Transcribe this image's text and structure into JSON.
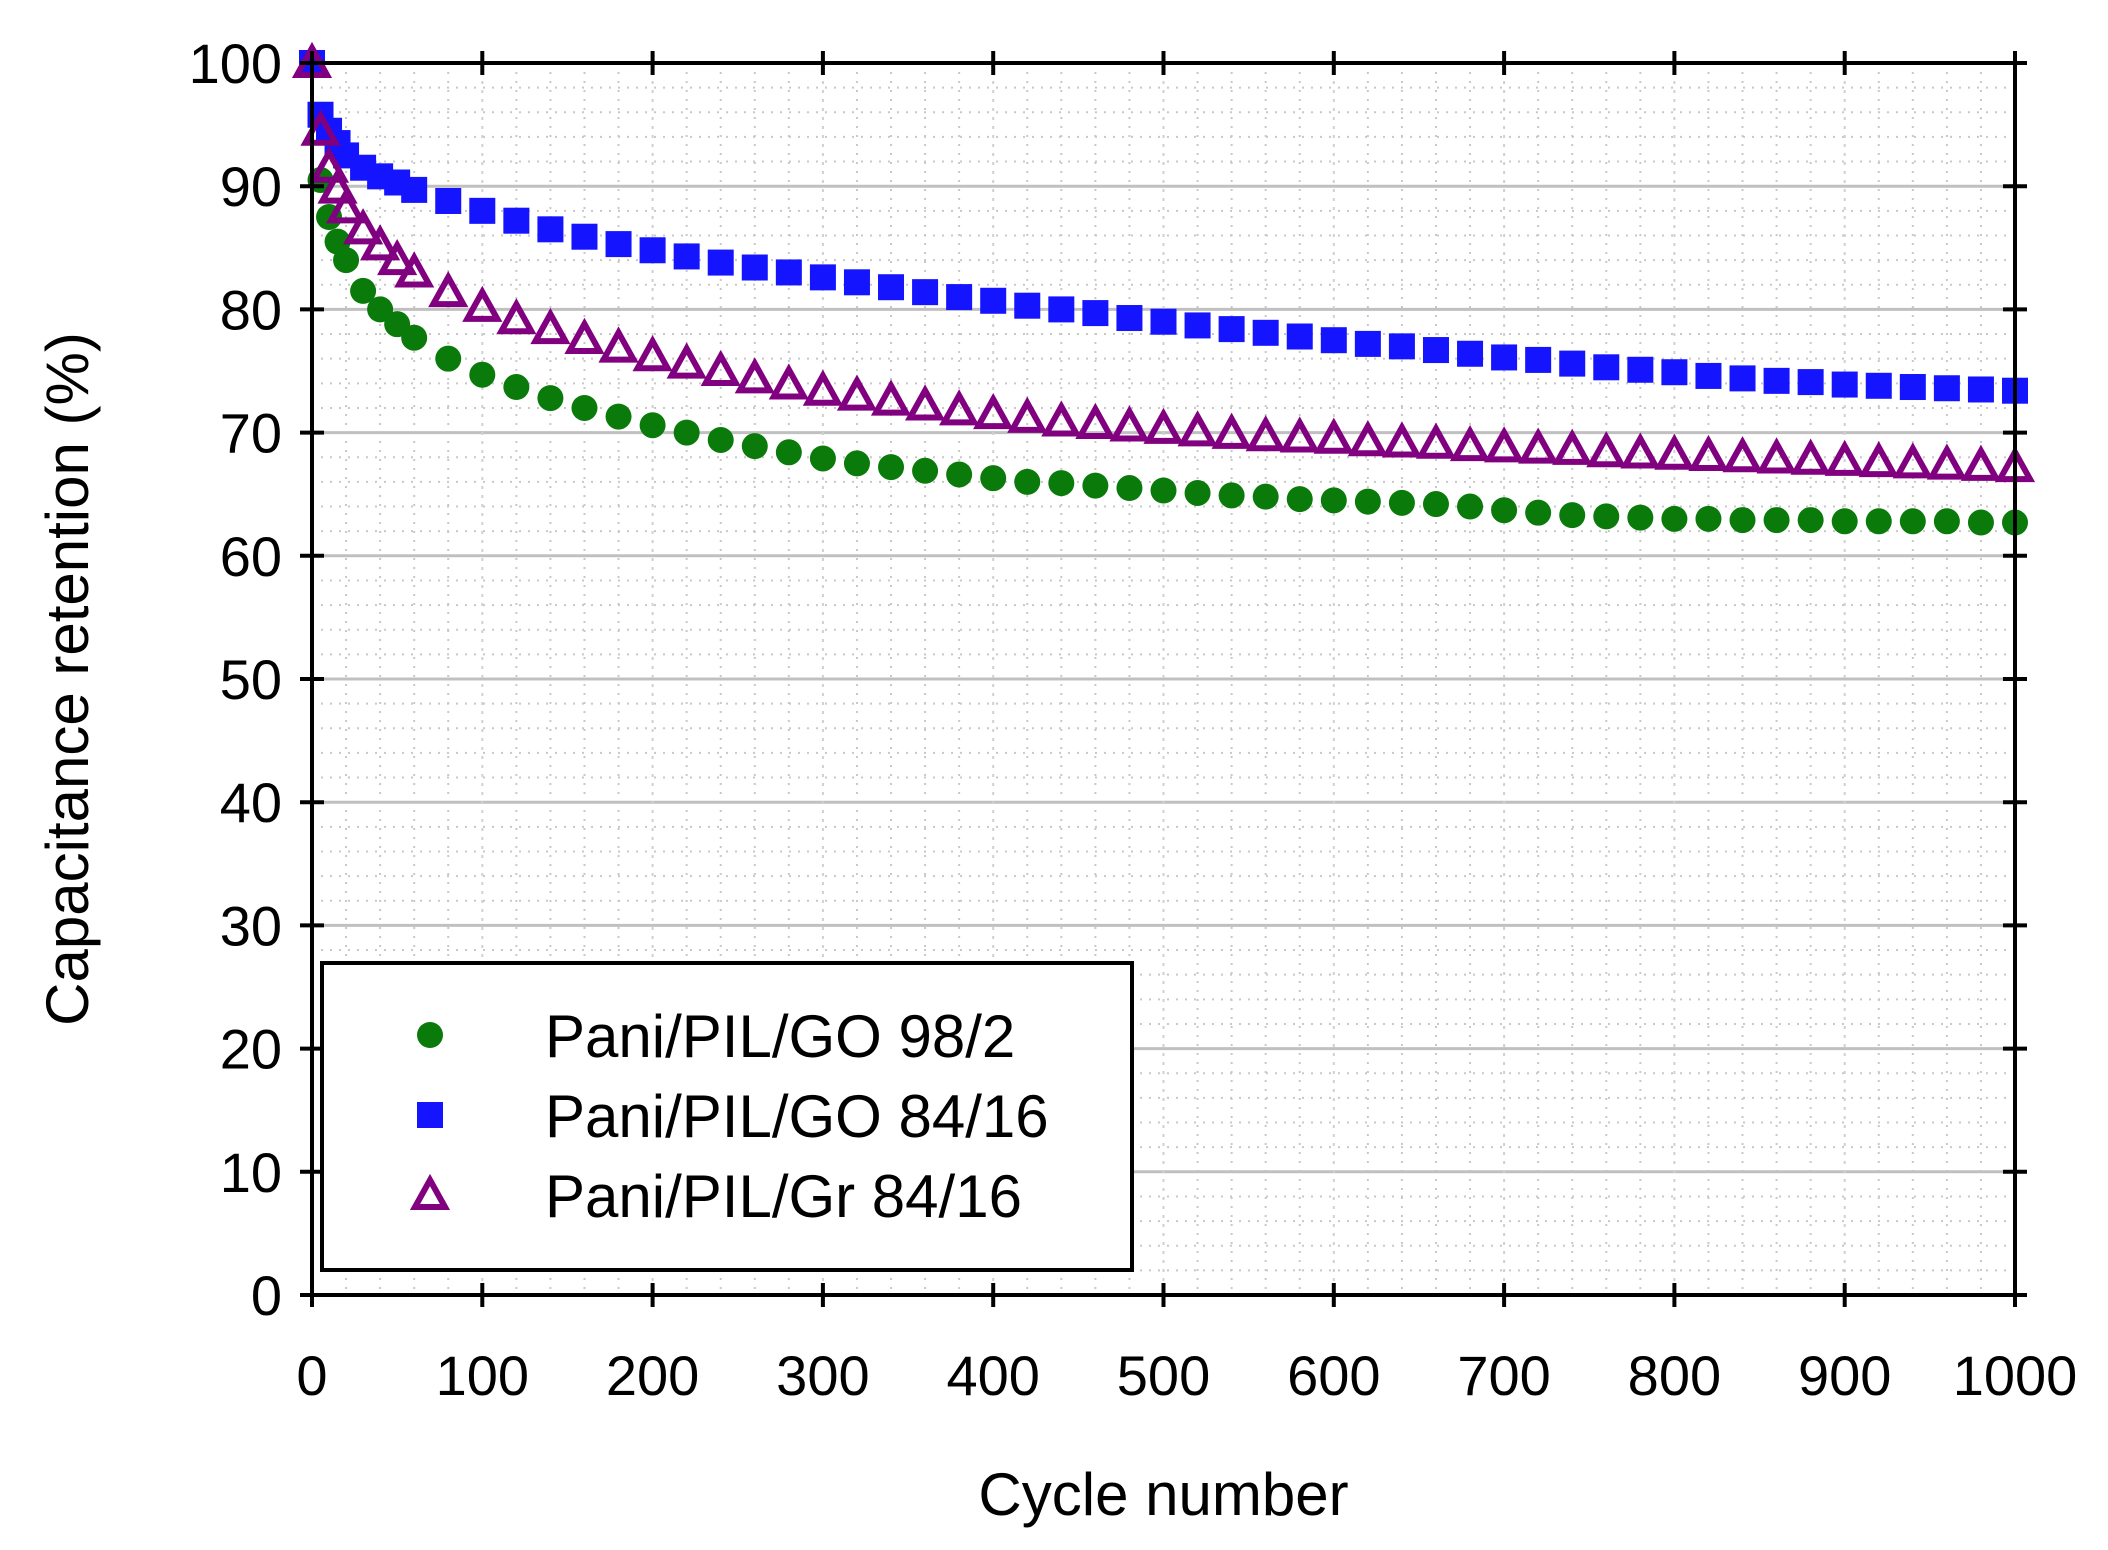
{
  "chart_data": {
    "type": "scatter",
    "title": "",
    "xlabel": "Cycle number",
    "ylabel": "Capacitance retention (%)",
    "xlim": [
      0,
      1000
    ],
    "ylim": [
      0,
      100
    ],
    "xticks": [
      0,
      100,
      200,
      300,
      400,
      500,
      600,
      700,
      800,
      900,
      1000
    ],
    "yticks": [
      0,
      10,
      20,
      30,
      40,
      50,
      60,
      70,
      80,
      90,
      100
    ],
    "xtick_labels": [
      "0",
      "100",
      "200",
      "300",
      "400",
      "500",
      "600",
      "700",
      "800",
      "900",
      "1000"
    ],
    "ytick_labels": [
      "0",
      "10",
      "20",
      "30",
      "40",
      "50",
      "60",
      "70",
      "80",
      "90",
      "100"
    ],
    "grid": true,
    "legend_position": "bottom-left",
    "series": [
      {
        "name": "Pani/PIL/GO 98/2",
        "marker": "circle",
        "color": "#0a7a0a",
        "x": [
          0,
          5,
          10,
          15,
          20,
          30,
          40,
          50,
          60,
          80,
          100,
          120,
          140,
          160,
          180,
          200,
          220,
          240,
          260,
          280,
          300,
          320,
          340,
          360,
          380,
          400,
          420,
          440,
          460,
          480,
          500,
          520,
          540,
          560,
          580,
          600,
          620,
          640,
          660,
          680,
          700,
          720,
          740,
          760,
          780,
          800,
          820,
          840,
          860,
          880,
          900,
          920,
          940,
          960,
          980,
          1000
        ],
        "y": [
          100,
          90.5,
          87.5,
          85.5,
          84.0,
          81.5,
          80.0,
          78.8,
          77.7,
          76.0,
          74.7,
          73.7,
          72.8,
          72.0,
          71.3,
          70.6,
          70.0,
          69.4,
          68.9,
          68.4,
          67.9,
          67.5,
          67.2,
          66.9,
          66.6,
          66.3,
          66.0,
          65.9,
          65.7,
          65.5,
          65.3,
          65.1,
          64.9,
          64.8,
          64.6,
          64.5,
          64.4,
          64.3,
          64.2,
          64.0,
          63.7,
          63.5,
          63.3,
          63.2,
          63.1,
          63.0,
          63.0,
          62.9,
          62.9,
          62.9,
          62.8,
          62.8,
          62.8,
          62.8,
          62.7,
          62.7
        ]
      },
      {
        "name": "Pani/PIL/GO 84/16",
        "marker": "square",
        "color": "#1414ff",
        "x": [
          0,
          5,
          10,
          15,
          20,
          30,
          40,
          50,
          60,
          80,
          100,
          120,
          140,
          160,
          180,
          200,
          220,
          240,
          260,
          280,
          300,
          320,
          340,
          360,
          380,
          400,
          420,
          440,
          460,
          480,
          500,
          520,
          540,
          560,
          580,
          600,
          620,
          640,
          660,
          680,
          700,
          720,
          740,
          760,
          780,
          800,
          820,
          840,
          860,
          880,
          900,
          920,
          940,
          960,
          980,
          1000
        ],
        "y": [
          100,
          95.8,
          94.5,
          93.5,
          92.5,
          91.5,
          90.8,
          90.3,
          89.7,
          88.8,
          88.0,
          87.2,
          86.5,
          85.9,
          85.3,
          84.8,
          84.3,
          83.8,
          83.4,
          83.0,
          82.6,
          82.2,
          81.8,
          81.4,
          81.0,
          80.7,
          80.3,
          80.0,
          79.7,
          79.3,
          79.0,
          78.7,
          78.4,
          78.1,
          77.8,
          77.5,
          77.2,
          77.0,
          76.7,
          76.4,
          76.1,
          75.9,
          75.6,
          75.3,
          75.1,
          74.9,
          74.6,
          74.4,
          74.2,
          74.1,
          73.9,
          73.8,
          73.7,
          73.6,
          73.5,
          73.4
        ]
      },
      {
        "name": "Pani/PIL/Gr 84/16",
        "marker": "triangle",
        "color": "#800080",
        "x": [
          0,
          5,
          10,
          15,
          20,
          30,
          40,
          50,
          60,
          80,
          100,
          120,
          140,
          160,
          180,
          200,
          220,
          240,
          260,
          280,
          300,
          320,
          340,
          360,
          380,
          400,
          420,
          440,
          460,
          480,
          500,
          520,
          540,
          560,
          580,
          600,
          620,
          640,
          660,
          680,
          700,
          720,
          740,
          760,
          780,
          800,
          820,
          840,
          860,
          880,
          900,
          920,
          940,
          960,
          980,
          1000
        ],
        "y": [
          100,
          94.5,
          91.5,
          89.8,
          88.2,
          86.5,
          85.2,
          84.0,
          83.0,
          81.4,
          80.2,
          79.2,
          78.4,
          77.6,
          76.9,
          76.2,
          75.6,
          75.0,
          74.4,
          73.9,
          73.4,
          73.0,
          72.6,
          72.2,
          71.8,
          71.5,
          71.2,
          70.9,
          70.7,
          70.5,
          70.3,
          70.1,
          69.9,
          69.7,
          69.6,
          69.5,
          69.3,
          69.2,
          69.1,
          68.9,
          68.8,
          68.7,
          68.6,
          68.4,
          68.3,
          68.2,
          68.1,
          68.0,
          67.9,
          67.8,
          67.7,
          67.6,
          67.5,
          67.4,
          67.3,
          67.2
        ]
      }
    ]
  }
}
